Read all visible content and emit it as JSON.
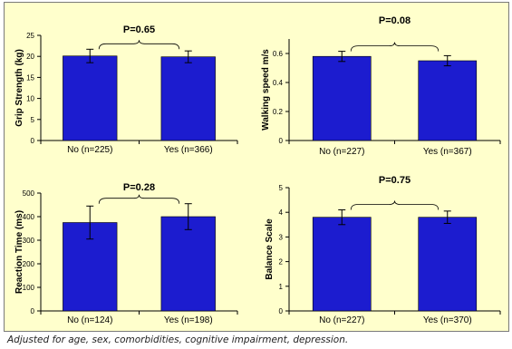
{
  "footnote": "Adjusted for age, sex, comorbidities, cognitive impairment, depression.",
  "chart_data": [
    {
      "type": "bar",
      "ylabel": "Grip Strength (kg)",
      "categories": [
        "No (n=225)",
        "Yes (n=366)"
      ],
      "values": [
        20.1,
        19.9
      ],
      "error": [
        1.6,
        1.4
      ],
      "ylim": [
        0,
        25
      ],
      "yticks": [
        0,
        5,
        10,
        15,
        20,
        25
      ],
      "ytick_labels": [
        "0",
        "5",
        "10",
        "15",
        "20",
        "25"
      ],
      "p_value": "P=0.65",
      "bar_color": "#1c1ccf"
    },
    {
      "type": "bar",
      "ylabel": "Walking speed m/s",
      "categories": [
        "No (n=227)",
        "Yes (n=367)"
      ],
      "values": [
        0.58,
        0.55
      ],
      "error": [
        0.035,
        0.035
      ],
      "ylim": [
        0,
        0.7
      ],
      "yticks": [
        0,
        0.2,
        0.4,
        0.6
      ],
      "ytick_labels": [
        "0",
        "0.2",
        "0.4",
        "0.6"
      ],
      "p_value": "P=0.08",
      "bar_color": "#1c1ccf"
    },
    {
      "type": "bar",
      "ylabel": "Reaction Time (ms)",
      "categories": [
        "No (n=124)",
        "Yes (n=198)"
      ],
      "values": [
        375,
        400
      ],
      "error": [
        70,
        55
      ],
      "ylim": [
        0,
        500
      ],
      "yticks": [
        0,
        100,
        200,
        300,
        400,
        500
      ],
      "ytick_labels": [
        "0",
        "100",
        "200",
        "300",
        "400",
        "500"
      ],
      "p_value": "P=0.28",
      "bar_color": "#1c1ccf"
    },
    {
      "type": "bar",
      "ylabel": "Balance Scale",
      "categories": [
        "No (n=227)",
        "Yes (n=370)"
      ],
      "values": [
        3.8,
        3.8
      ],
      "error": [
        0.3,
        0.25
      ],
      "ylim": [
        0,
        5
      ],
      "yticks": [
        0,
        1,
        2,
        3,
        4,
        5
      ],
      "ytick_labels": [
        "0",
        "1",
        "2",
        "3",
        "4",
        "5"
      ],
      "p_value": "P=0.75",
      "bar_color": "#1c1ccf"
    }
  ]
}
